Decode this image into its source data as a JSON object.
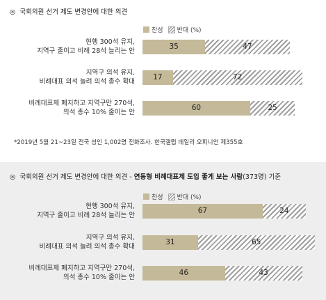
{
  "chart_data": [
    {
      "type": "bar",
      "stacked": true,
      "orientation": "horizontal",
      "title": "국회의원 선거 제도 변경안에 대한 의견",
      "title_bold_suffix": "",
      "title_tail": "",
      "legend": {
        "for": "찬성",
        "against": "반대 (%)"
      },
      "categories": [
        [
          "현행 300석 유지,",
          "지역구 줄이고 비례 28석 늘리는 안"
        ],
        [
          "지역구 의석 유지,",
          "비례대표 의석 늘려 의석 총수 확대"
        ],
        [
          "비례대표제 폐지하고 지역구만 270석,",
          "의석 총수 10% 줄이는 안"
        ]
      ],
      "series": [
        {
          "name": "찬성",
          "values": [
            35,
            17,
            60
          ],
          "color": "#c4b998"
        },
        {
          "name": "반대",
          "values": [
            47,
            72,
            25
          ],
          "color": "#9f9f9f"
        }
      ],
      "xlim": [
        0,
        100
      ],
      "note": "*2019년 5월 21~23일 전국 성인 1,002명 전화조사. 한국갤럽 데일리 오피니언 제355호"
    },
    {
      "type": "bar",
      "stacked": true,
      "orientation": "horizontal",
      "title": "국회의원 선거 제도 변경안에 대한 의견 - ",
      "title_bold_suffix": "연동형 비례대표제 도입 좋게 보는 사람",
      "title_tail": "(373명) 기준",
      "legend": {
        "for": "찬성",
        "against": "반대 (%)"
      },
      "categories": [
        [
          "현행 300석 유지,",
          "지역구 줄이고 비례 28석 늘리는 안"
        ],
        [
          "지역구 의석 유지,",
          "비례대표 의석 늘려 의석 총수 확대"
        ],
        [
          "비례대표제 폐지하고 지역구만 270석,",
          "의석 총수 10% 줄이는 안"
        ]
      ],
      "series": [
        {
          "name": "찬성",
          "values": [
            67,
            31,
            46
          ],
          "color": "#c4b998"
        },
        {
          "name": "반대",
          "values": [
            24,
            65,
            43
          ],
          "color": "#9f9f9f"
        }
      ],
      "xlim": [
        0,
        100
      ]
    }
  ],
  "icons": {
    "title_bullet": "circled-bullet-icon"
  }
}
